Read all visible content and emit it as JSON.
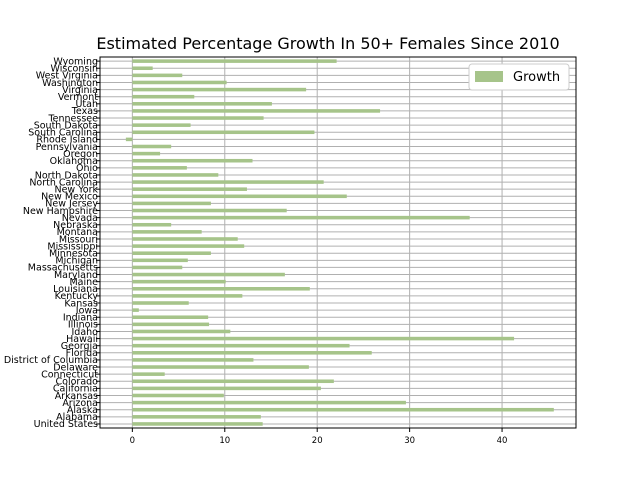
{
  "chart_data": {
    "type": "bar",
    "orientation": "horizontal",
    "title": "Estimated Percentage Growth In 50+ Females Since 2010",
    "xlabel": "",
    "ylabel": "",
    "xlim": [
      -3.5,
      48
    ],
    "xticks": [
      0,
      10,
      20,
      30,
      40
    ],
    "grid": true,
    "legend_position": "top-right",
    "bar_color": "#a6c48a",
    "series": [
      {
        "name": "Growth"
      }
    ],
    "categories": [
      "United States",
      "Alabama",
      "Alaska",
      "Arizona",
      "Arkansas",
      "California",
      "Colorado",
      "Connecticut",
      "Delaware",
      "District of Columbia",
      "Florida",
      "Georgia",
      "Hawaii",
      "Idaho",
      "Illinois",
      "Indiana",
      "Iowa",
      "Kansas",
      "Kentucky",
      "Louisiana",
      "Maine",
      "Maryland",
      "Massachusetts",
      "Michigan",
      "Minnesota",
      "Mississippi",
      "Missouri",
      "Montana",
      "Nebraska",
      "Nevada",
      "New Hampshire",
      "New Jersey",
      "New Mexico",
      "New York",
      "North Carolina",
      "North Dakota",
      "Ohio",
      "Oklahoma",
      "Oregon",
      "Pennsylvania",
      "Rhode Island",
      "South Carolina",
      "South Dakota",
      "Tennessee",
      "Texas",
      "Utah",
      "Vermont",
      "Virginia",
      "Washington",
      "West Virginia",
      "Wisconsin",
      "Wyoming"
    ],
    "values": [
      14.1,
      13.9,
      45.6,
      29.6,
      9.9,
      20.4,
      21.8,
      3.5,
      19.1,
      13.1,
      25.9,
      23.5,
      41.3,
      10.6,
      8.3,
      8.2,
      0.7,
      6.1,
      11.9,
      19.2,
      10.1,
      16.5,
      5.4,
      6.0,
      8.5,
      12.1,
      11.4,
      7.5,
      4.2,
      36.5,
      16.7,
      8.5,
      23.2,
      12.4,
      20.7,
      9.3,
      5.9,
      13.0,
      3.0,
      4.2,
      -0.7,
      19.7,
      6.3,
      14.2,
      26.8,
      15.1,
      6.7,
      18.8,
      10.2,
      5.4,
      2.2,
      22.1
    ]
  }
}
